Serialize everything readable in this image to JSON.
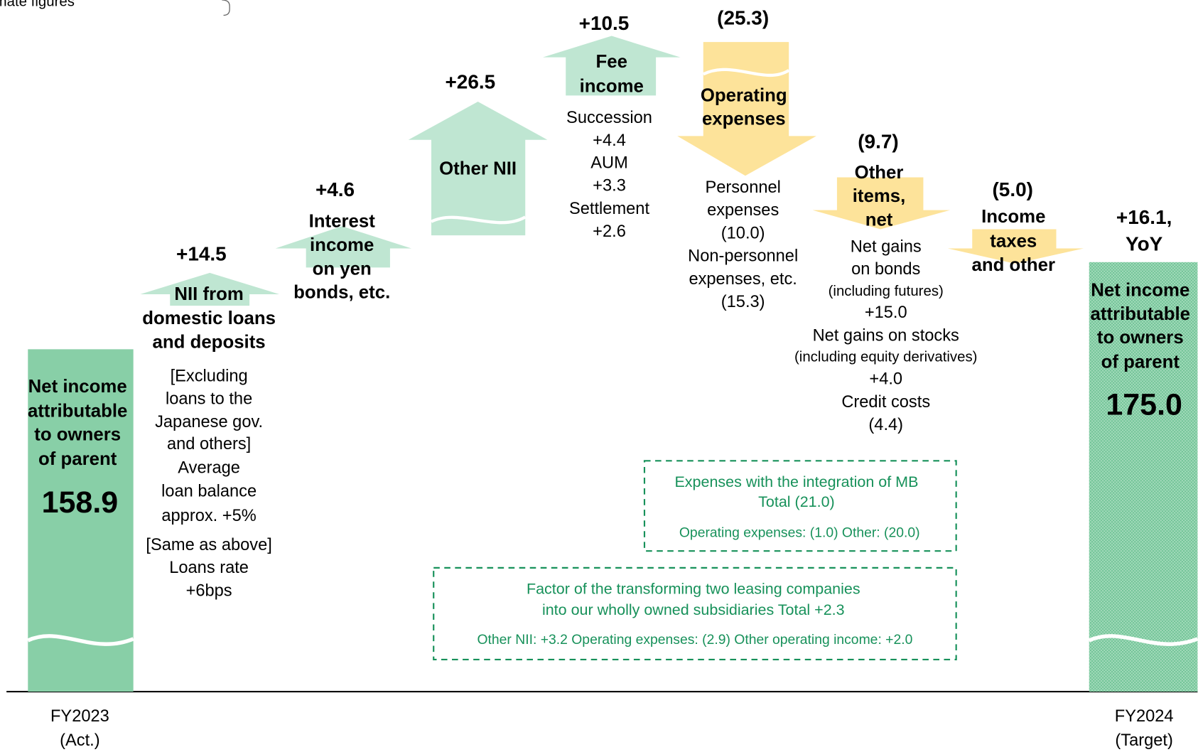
{
  "note": "JPY bn, approximate figures",
  "start": {
    "label": [
      "Net income",
      "attributable",
      "to owners",
      "of parent"
    ],
    "value": "158.9",
    "period": [
      "FY2023",
      "(Act.)"
    ]
  },
  "steps": [
    {
      "change": "+14.5",
      "label": [
        "NII from",
        "domestic loans",
        "and deposits"
      ],
      "details": [
        "[Excluding",
        "loans to the",
        "Japanese gov.",
        "and others]",
        "Average",
        "loan balance",
        "approx. +5%",
        "[Same as above]",
        "Loans rate",
        "+6bps"
      ]
    },
    {
      "change": "+4.6",
      "label": [
        "Interest",
        "income",
        "on yen",
        "bonds, etc."
      ],
      "details": []
    },
    {
      "change": "+26.5",
      "label": [
        "Other NII"
      ],
      "details": []
    },
    {
      "change": "+10.5",
      "label": [
        "Fee",
        "income"
      ],
      "details": [
        "Succession",
        "+4.4",
        "AUM",
        "+3.3",
        "Settlement",
        "+2.6"
      ]
    },
    {
      "change": "(25.3)",
      "label": [
        "Operating",
        "expenses"
      ],
      "details": [
        "Personnel",
        "expenses",
        "(10.0)",
        "Non-personnel",
        "expenses, etc.",
        "(15.3)"
      ]
    },
    {
      "change": "(9.7)",
      "label": [
        "Other",
        "items,",
        "net"
      ],
      "details": [
        "Net gains",
        "on bonds",
        "(including futures)",
        "+15.0",
        "Net gains on stocks",
        "(including equity derivatives)",
        "+4.0",
        "Credit costs",
        "(4.4)"
      ]
    },
    {
      "change": "(5.0)",
      "label": [
        "Income",
        "taxes",
        "and other"
      ],
      "details": []
    }
  ],
  "end": {
    "change": [
      "+16.1,",
      "YoY"
    ],
    "label": [
      "Net income",
      "attributable",
      "to owners",
      "of parent"
    ],
    "value": "175.0",
    "period": [
      "FY2024",
      "(Target)"
    ]
  },
  "boxes": [
    {
      "title": [
        "Expenses with the integration of MB",
        "Total (21.0)"
      ],
      "breakdown": "Operating expenses: (1.0)  Other: (20.0)"
    },
    {
      "title": [
        "Factor of the transforming two leasing companies",
        "into our wholly owned subsidiaries  Total +2.3"
      ],
      "breakdown": "Other NII: +3.2  Operating expenses: (2.9)  Other operating income: +2.0"
    }
  ]
}
